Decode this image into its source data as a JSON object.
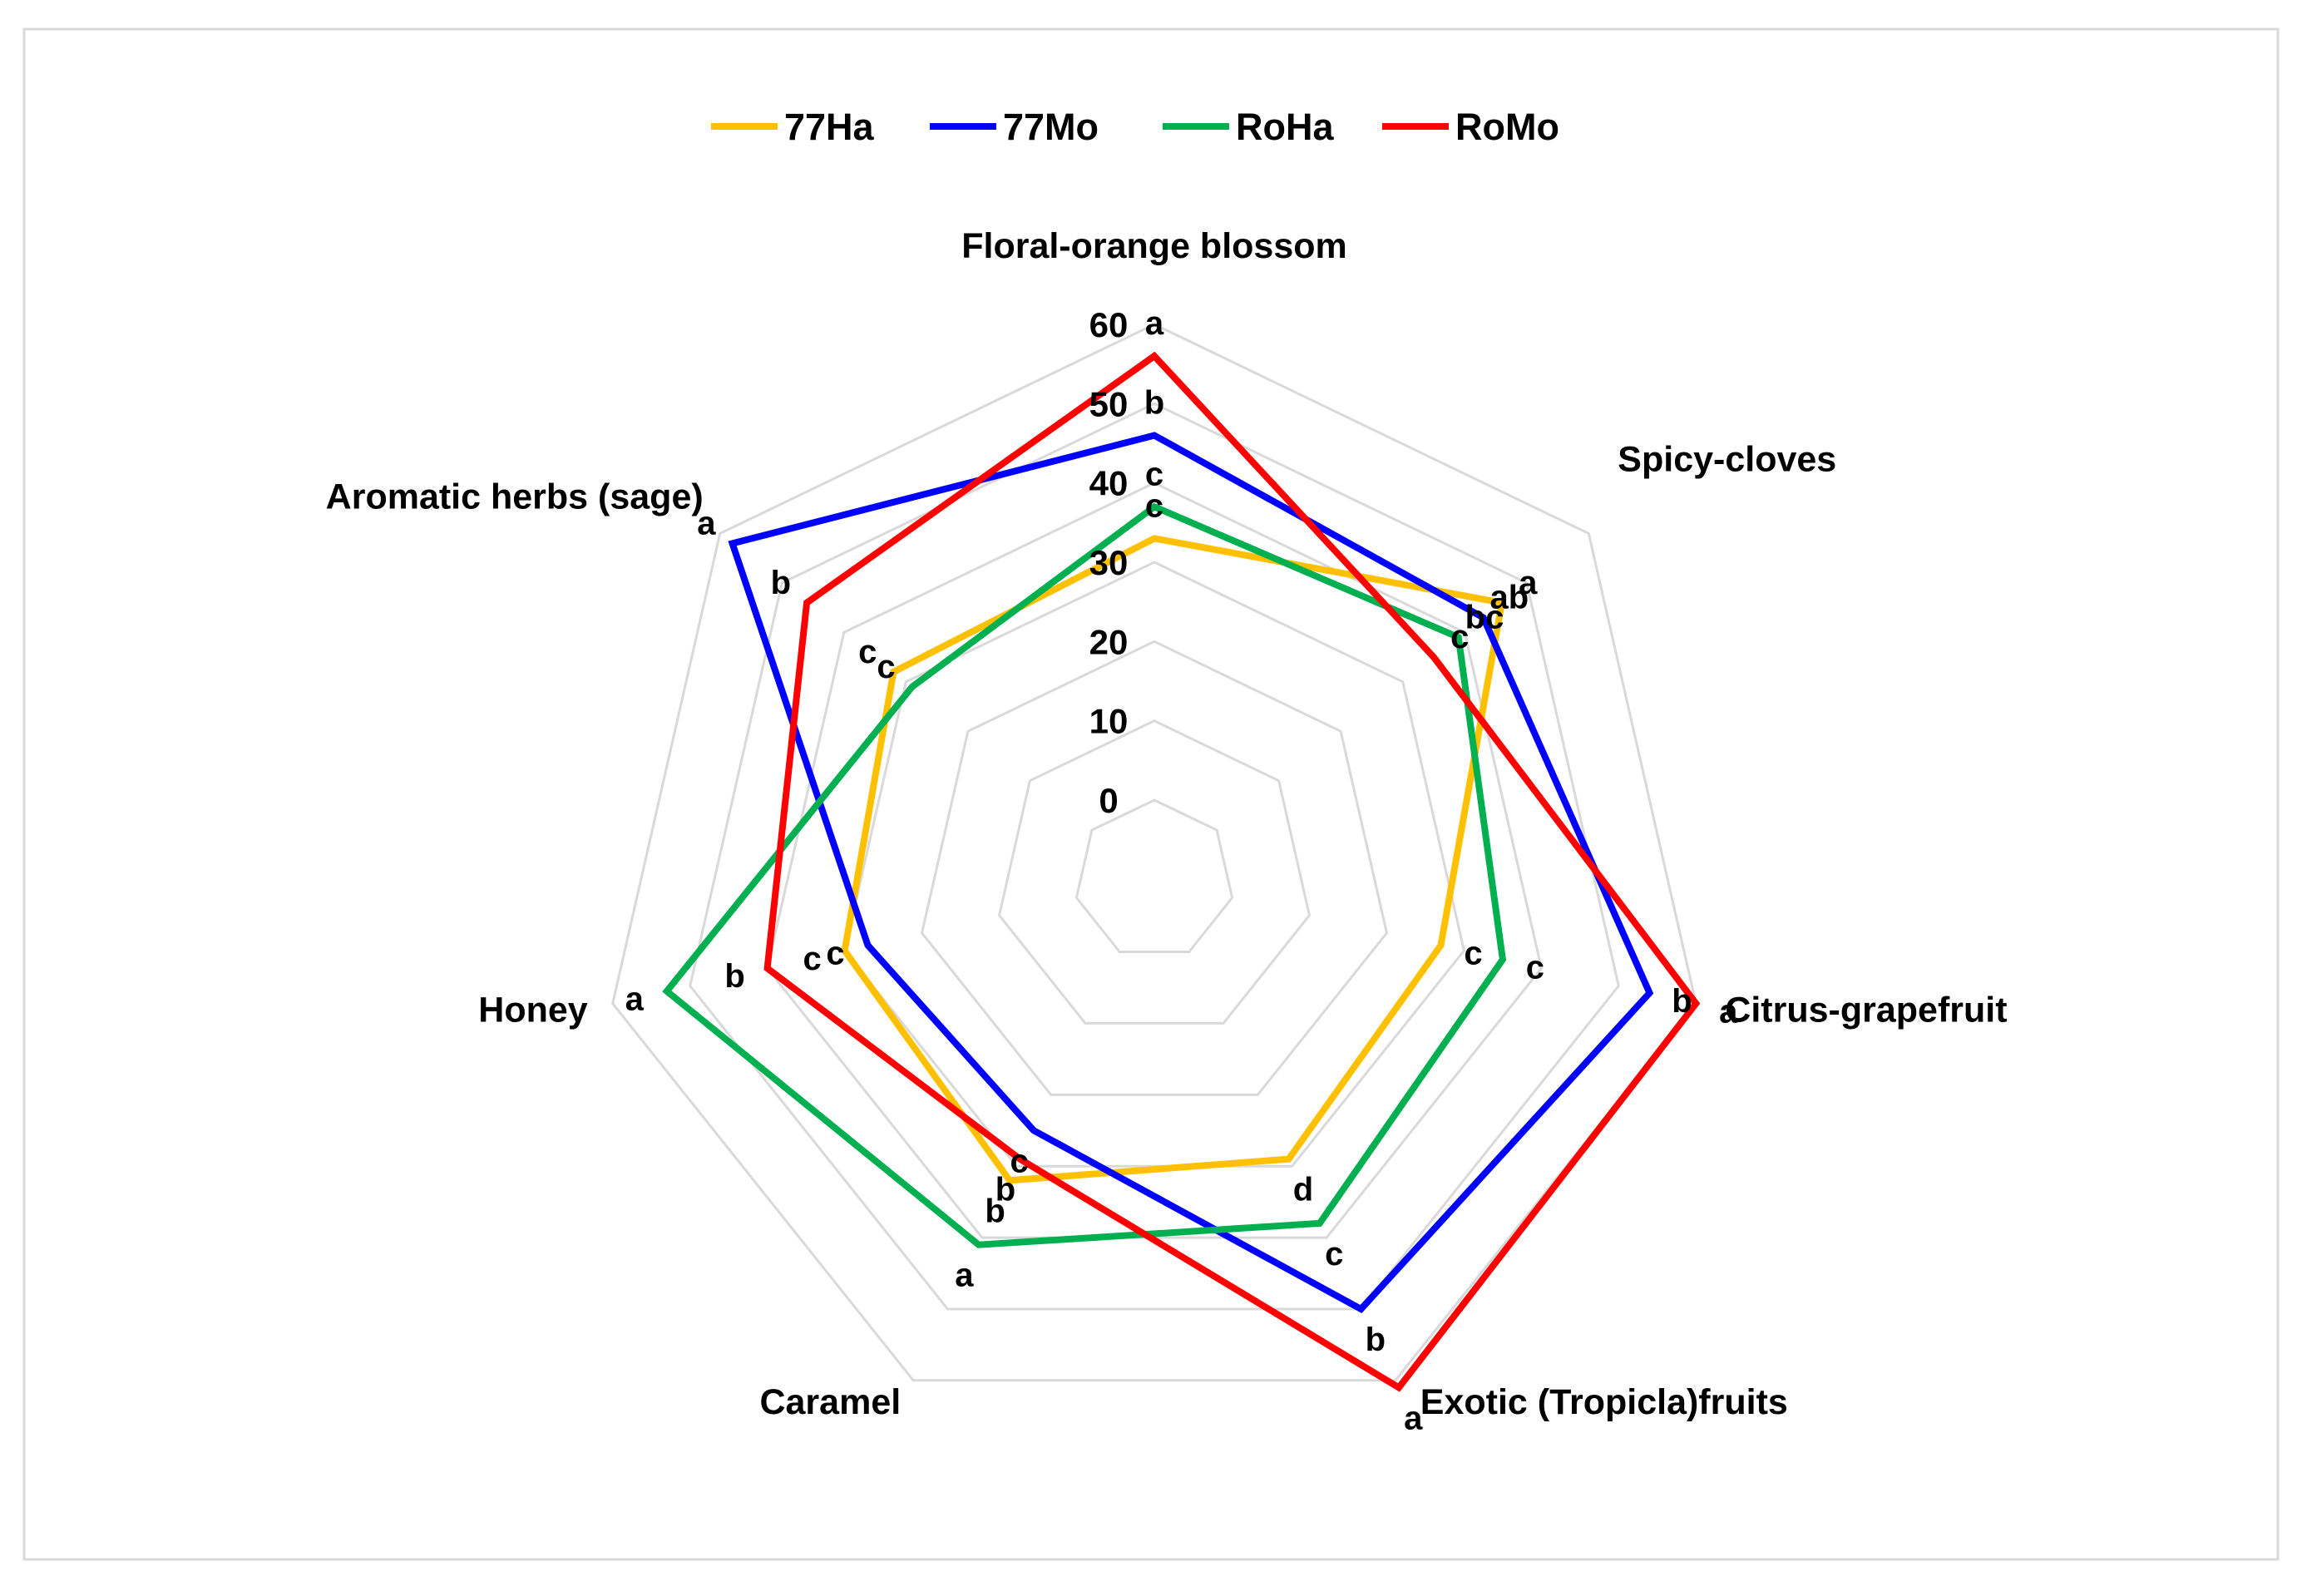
{
  "chart_data": {
    "type": "radar",
    "categories": [
      "Floral-orange blossom",
      "Spicy-cloves",
      "Citrus-grapefruit",
      "Exotic (Tropicla)fruits",
      "Caramel",
      "Honey",
      "Aromatic herbs (sage)"
    ],
    "r_ticks": [
      "0",
      "10",
      "20",
      "30",
      "40",
      "50",
      "60"
    ],
    "rlim": [
      0,
      60
    ],
    "grid": true,
    "legend_position": "top",
    "series": [
      {
        "name": "77Ha",
        "color": "#FFC000",
        "values": [
          33,
          46,
          27,
          29,
          32,
          30,
          32
        ],
        "labels": [
          "c",
          "a",
          "c",
          "d",
          "b",
          "c",
          "c"
        ]
      },
      {
        "name": "77Mo",
        "color": "#0000FF",
        "values": [
          46,
          43,
          54,
          50,
          25,
          27,
          58
        ],
        "labels": [
          "b",
          "ab",
          "b",
          "b",
          "c",
          "c",
          "a"
        ]
      },
      {
        "name": "RoHa",
        "color": "#00B050",
        "values": [
          37,
          39,
          35,
          38,
          41,
          53,
          29
        ],
        "labels": [
          "c",
          "bc",
          "c",
          "c",
          "a",
          "a",
          "c"
        ]
      },
      {
        "name": "RoMo",
        "color": "#FF0000",
        "values": [
          56,
          35,
          60,
          61,
          29,
          40,
          46
        ],
        "labels": [
          "a",
          "c",
          "a",
          "a",
          "b",
          "b",
          "b"
        ]
      }
    ]
  }
}
